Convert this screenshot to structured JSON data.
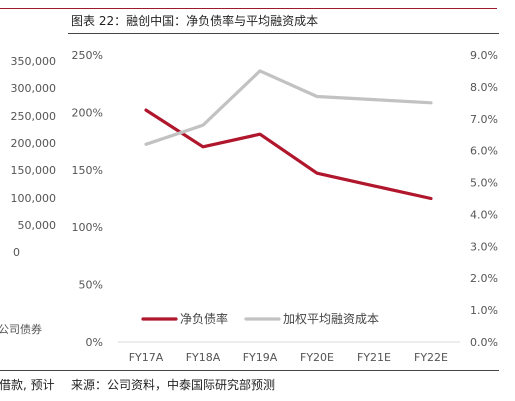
{
  "figure": {
    "title": "图表 22：融创中国：净负债率与平均融资成本",
    "source": "来源：公司资料，中泰国际研究部预测"
  },
  "left_fragment": {
    "ticks": [
      "350,000",
      "300,000",
      "250,000",
      "200,000",
      "150,000",
      "100,000",
      "50,000",
      "0"
    ],
    "legend_text": "公司债券",
    "footer_text": "借款, 预计"
  },
  "colors": {
    "net_debt": "#b0162c",
    "financing_cost": "#c2c2c2",
    "top_rule": "#9c1b2b"
  },
  "chart_data": {
    "type": "line",
    "title": "融创中国：净负债率与平均融资成本",
    "categories": [
      "FY17A",
      "FY18A",
      "FY19A",
      "FY20E",
      "FY21E",
      "FY22E"
    ],
    "y_left": {
      "lim": [
        0,
        250
      ],
      "ticks": [
        0,
        50,
        100,
        150,
        200,
        250
      ],
      "tick_labels": [
        "0%",
        "50%",
        "100%",
        "150%",
        "200%",
        "250%"
      ]
    },
    "y_right": {
      "lim": [
        0,
        9
      ],
      "ticks": [
        0,
        1,
        2,
        3,
        4,
        5,
        6,
        7,
        8,
        9
      ],
      "tick_labels": [
        "0.0%",
        "1.0%",
        "2.0%",
        "3.0%",
        "4.0%",
        "5.0%",
        "6.0%",
        "7.0%",
        "8.0%",
        "9.0%"
      ]
    },
    "series": [
      {
        "name": "净负债率",
        "axis": "left",
        "unit": "%",
        "values": [
          202,
          170,
          181,
          147,
          136,
          125
        ]
      },
      {
        "name": "加权平均融资成本",
        "axis": "right",
        "unit": "%",
        "values": [
          6.2,
          6.8,
          8.5,
          7.7,
          7.6,
          7.5
        ]
      }
    ],
    "grid": false,
    "legend": "bottom-center"
  }
}
